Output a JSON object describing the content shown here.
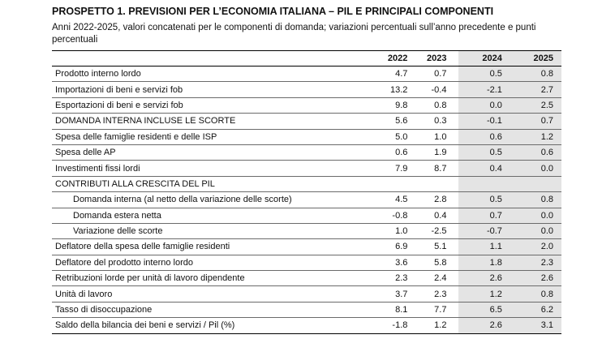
{
  "title": "PROSPETTO 1. PREVISIONI PER L’ECONOMIA ITALIANA – PIL E PRINCIPALI COMPONENTI",
  "subtitle": "Anni 2022-2025, valori concatenati per le componenti di domanda; variazioni percentuali sull’anno precedente e punti percentuali",
  "header": {
    "label": "",
    "y2022": "2022",
    "y2023": "2023",
    "y2024": "2024",
    "y2025": "2025"
  },
  "rows": [
    {
      "label": "Prodotto interno lordo",
      "v2022": "4.7",
      "v2023": "0.7",
      "v2024": "0.5",
      "v2025": "0.8"
    },
    {
      "label": "Importazioni di beni e servizi fob",
      "v2022": "13.2",
      "v2023": "-0.4",
      "v2024": "-2.1",
      "v2025": "2.7"
    },
    {
      "label": "Esportazioni di beni e servizi fob",
      "v2022": "9.8",
      "v2023": "0.8",
      "v2024": "0.0",
      "v2025": "2.5"
    },
    {
      "label": "DOMANDA INTERNA INCLUSE LE SCORTE",
      "v2022": "5.6",
      "v2023": "0.3",
      "v2024": "-0.1",
      "v2025": "0.7"
    },
    {
      "label": "Spesa delle famiglie residenti e delle ISP",
      "v2022": "5.0",
      "v2023": "1.0",
      "v2024": "0.6",
      "v2025": "1.2"
    },
    {
      "label": "Spesa delle AP",
      "v2022": "0.6",
      "v2023": "1.9",
      "v2024": "0.5",
      "v2025": "0.6"
    },
    {
      "label": "Investimenti fissi lordi",
      "v2022": "7.9",
      "v2023": "8.7",
      "v2024": "0.4",
      "v2025": "0.0"
    },
    {
      "label": "CONTRIBUTI ALLA CRESCITA DEL PIL",
      "v2022": "",
      "v2023": "",
      "v2024": "",
      "v2025": ""
    },
    {
      "label": "Domanda interna (al netto della variazione delle scorte)",
      "v2022": "4.5",
      "v2023": "2.8",
      "v2024": "0.5",
      "v2025": "0.8"
    },
    {
      "label": "Domanda estera netta",
      "v2022": "-0.8",
      "v2023": "0.4",
      "v2024": "0.7",
      "v2025": "0.0"
    },
    {
      "label": "Variazione delle scorte",
      "v2022": "1.0",
      "v2023": "-2.5",
      "v2024": "-0.7",
      "v2025": "0.0"
    },
    {
      "label": "Deflatore della spesa delle famiglie residenti",
      "v2022": "6.9",
      "v2023": "5.1",
      "v2024": "1.1",
      "v2025": "2.0"
    },
    {
      "label": "Deflatore del prodotto interno lordo",
      "v2022": "3.6",
      "v2023": "5.8",
      "v2024": "1.8",
      "v2025": "2.3"
    },
    {
      "label": "Retribuzioni lorde per unità di lavoro dipendente",
      "v2022": "2.3",
      "v2023": "2.4",
      "v2024": "2.6",
      "v2025": "2.6"
    },
    {
      "label": "Unità di lavoro",
      "v2022": "3.7",
      "v2023": "2.3",
      "v2024": "1.2",
      "v2025": "0.8"
    },
    {
      "label": "Tasso di disoccupazione",
      "v2022": "8.1",
      "v2023": "7.7",
      "v2024": "6.5",
      "v2025": "6.2"
    },
    {
      "label": "Saldo della bilancia dei beni e servizi / Pil (%)",
      "v2022": "-1.8",
      "v2023": "1.2",
      "v2024": "2.6",
      "v2025": "3.1"
    }
  ]
}
